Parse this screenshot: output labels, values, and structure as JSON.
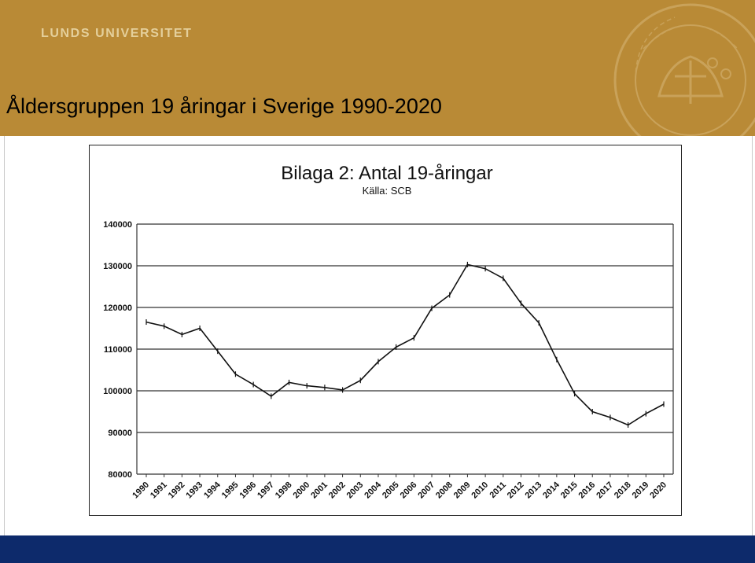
{
  "header": {
    "university": "LUNDS UNIVERSITET",
    "title": "Åldersgruppen 19 åringar i Sverige 1990-2020",
    "background_color": "#b98a36",
    "seal_icon": "university-seal-icon"
  },
  "footer": {
    "background_color": "#0d2a6b"
  },
  "chart_data": {
    "type": "line",
    "title": "Bilaga 2: Antal 19-åringar",
    "subtitle": "Källa: SCB",
    "xlabel": "",
    "ylabel": "",
    "categories": [
      "1990",
      "1991",
      "1992",
      "1993",
      "1994",
      "1995",
      "1996",
      "1997",
      "1998",
      "2000",
      "2001",
      "2002",
      "2003",
      "2004",
      "2005",
      "2006",
      "2007",
      "2008",
      "2009",
      "2010",
      "2011",
      "2012",
      "2013",
      "2014",
      "2015",
      "2016",
      "2017",
      "2018",
      "2019",
      "2020"
    ],
    "series": [
      {
        "values": [
          116500,
          115500,
          113500,
          115000,
          109500,
          104000,
          101500,
          98700,
          102000,
          101200,
          100800,
          100200,
          102500,
          107000,
          110500,
          112700,
          119800,
          123000,
          130300,
          129300,
          127000,
          121000,
          116300,
          107500,
          99300,
          95000,
          93600,
          91800,
          94500,
          96800
        ]
      }
    ],
    "ylim": [
      80000,
      140000
    ],
    "yticks": [
      "140000",
      "130000",
      "120000",
      "110000",
      "100000",
      "90000",
      "80000"
    ],
    "grid": true,
    "legend": "none",
    "line_color": "#111111"
  }
}
